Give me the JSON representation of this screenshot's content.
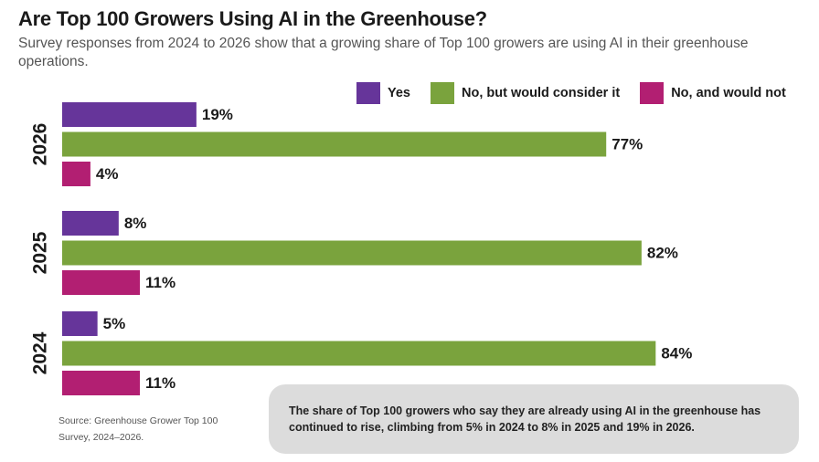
{
  "title": "Are Top 100 Growers Using AI in the Greenhouse?",
  "subtitle": "Survey responses from 2024 to 2026 show that a growing share of Top 100 growers are using AI in their greenhouse operations.",
  "source": "Source: Greenhouse Grower Top 100 Survey, 2024–2026.",
  "note": "The share of Top 100 growers who say they are already using AI in the greenhouse has continued to rise, climbing from 5% in 2024 to 8% in 2025 and 19% in 2026.",
  "chart_data": {
    "type": "bar",
    "orientation": "horizontal",
    "categories": [
      "2026",
      "2025",
      "2024"
    ],
    "series": [
      {
        "name": "Yes",
        "color": "#66359a",
        "values": [
          19,
          8,
          5
        ]
      },
      {
        "name": "No, but would consider it",
        "color": "#7aa33d",
        "values": [
          77,
          82,
          84
        ]
      },
      {
        "name": "No, and would not",
        "color": "#b21f72",
        "values": [
          4,
          11,
          11
        ]
      }
    ],
    "value_suffix": "%",
    "xlim": [
      0,
      100
    ],
    "grid": false,
    "legend_position": "top-right"
  }
}
